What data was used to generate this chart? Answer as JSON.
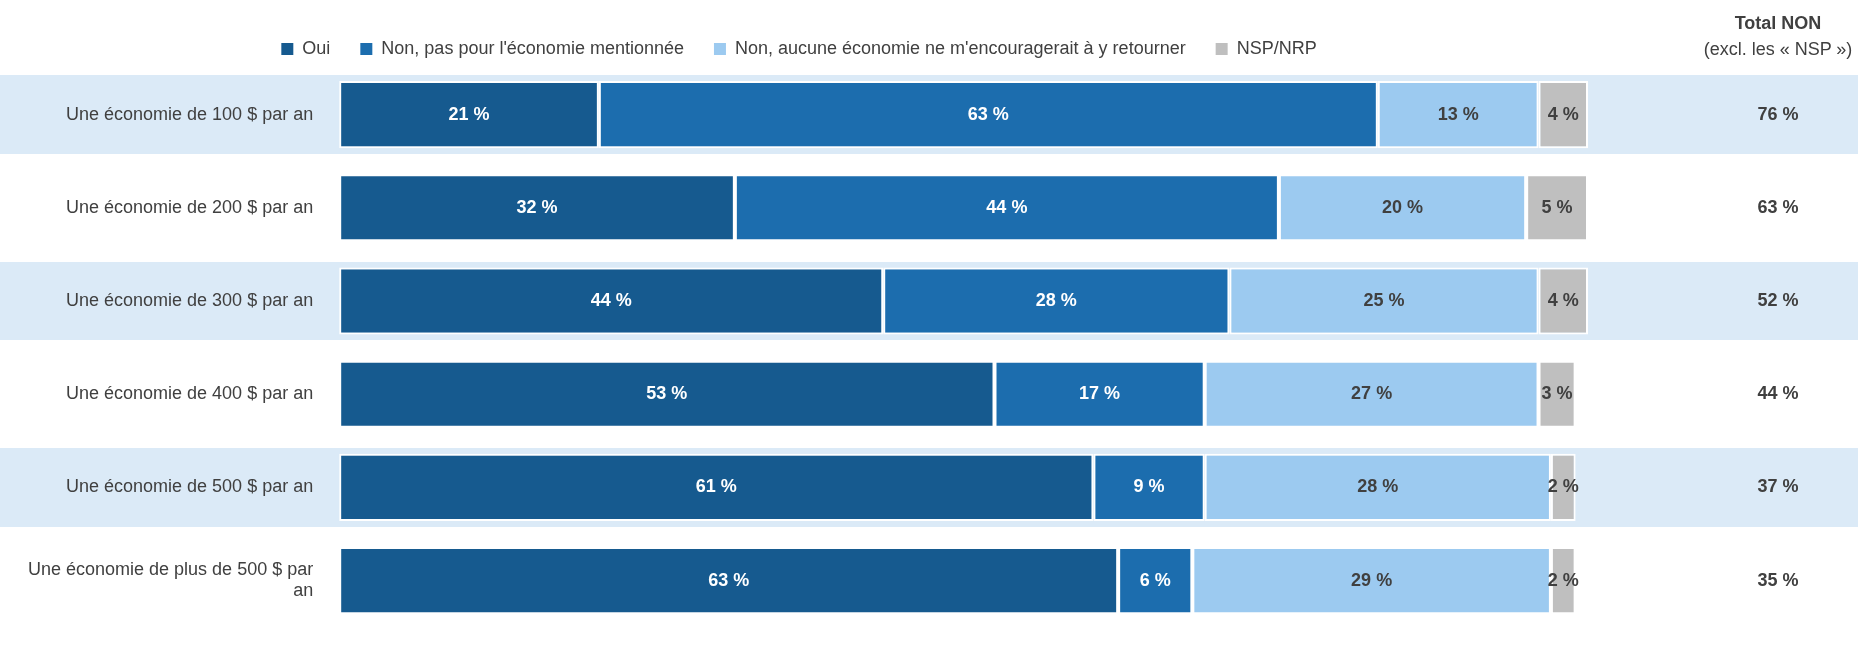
{
  "chart_data": {
    "type": "bar",
    "orientation": "horizontal",
    "stacked": true,
    "legend": "top",
    "tick_labels": "y",
    "categories": [
      "Une économie de 100 $ par an",
      "Une économie de 200 $ par an",
      "Une économie de 300 $ par an",
      "Une économie de 400 $ par an",
      "Une économie de 500 $ par an",
      "Une économie de plus de 500 $ par an"
    ],
    "series": [
      {
        "name": "Oui",
        "color": "#165a8f",
        "values": [
          21,
          32,
          44,
          53,
          61,
          63
        ],
        "value_labels": [
          "21 %",
          "32 %",
          "44 %",
          "53 %",
          "61 %",
          "63 %"
        ]
      },
      {
        "name": "Non, pas pour l'économie mentionnée",
        "color": "#1c6dae",
        "values": [
          63,
          44,
          28,
          17,
          9,
          6
        ],
        "value_labels": [
          "63 %",
          "44 %",
          "28 %",
          "17 %",
          "9 %",
          "6 %"
        ]
      },
      {
        "name": "Non, aucune économie ne m'encouragerait à y retourner",
        "color": "#9ccaf0",
        "values": [
          13,
          20,
          25,
          27,
          28,
          29
        ],
        "value_labels": [
          "13 %",
          "20 %",
          "25 %",
          "27 %",
          "28 %",
          "29 %"
        ]
      },
      {
        "name": "NSP/NRP",
        "color": "#bfbfbf",
        "values": [
          4,
          5,
          4,
          3,
          2,
          2
        ],
        "value_labels": [
          "4 %",
          "5 %",
          "4 %",
          "3 %",
          "2 %",
          "2 %"
        ]
      }
    ],
    "annotations": [
      "Total NON",
      "(excl. les « NSP »)",
      "76 %",
      "63 %",
      "52 %",
      "44 %",
      "37 %",
      "35 %"
    ]
  }
}
